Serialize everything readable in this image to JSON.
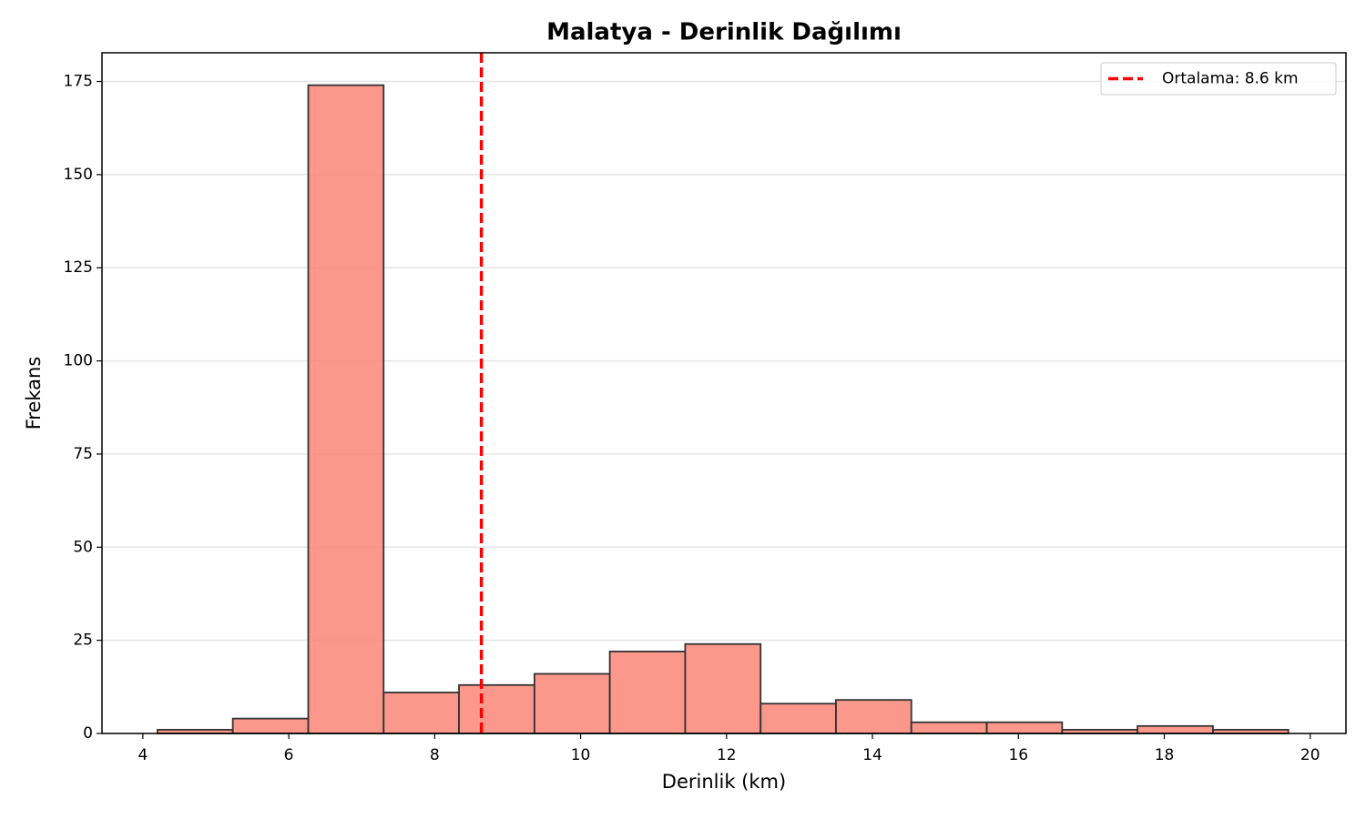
{
  "chart_data": {
    "type": "histogram",
    "title": "Malatya - Derinlik Dağılımı",
    "x_label": "Derinlik (km)",
    "y_label": "Frekans",
    "bins": [
      4.2,
      5.233,
      6.267,
      7.3,
      8.333,
      9.367,
      10.4,
      11.433,
      12.467,
      13.5,
      14.533,
      15.567,
      16.6,
      17.633,
      18.667,
      19.7
    ],
    "values": [
      1,
      4,
      174,
      11,
      13,
      16,
      22,
      24,
      8,
      9,
      3,
      3,
      1,
      2,
      1
    ],
    "color": "#fa8072",
    "edge_color": "#333333",
    "xlim": [
      3.44,
      20.49
    ],
    "xticks": [
      4,
      6,
      8,
      10,
      12,
      14,
      16,
      18,
      20
    ],
    "ylim": [
      0,
      182.7
    ],
    "yticks": [
      0,
      25,
      50,
      75,
      100,
      125,
      150,
      175
    ],
    "grid": true,
    "mean_line": {
      "value": 8.64,
      "label": "Ortalama: 8.6 km",
      "color": "#ff0000"
    },
    "legend": "upper right"
  }
}
